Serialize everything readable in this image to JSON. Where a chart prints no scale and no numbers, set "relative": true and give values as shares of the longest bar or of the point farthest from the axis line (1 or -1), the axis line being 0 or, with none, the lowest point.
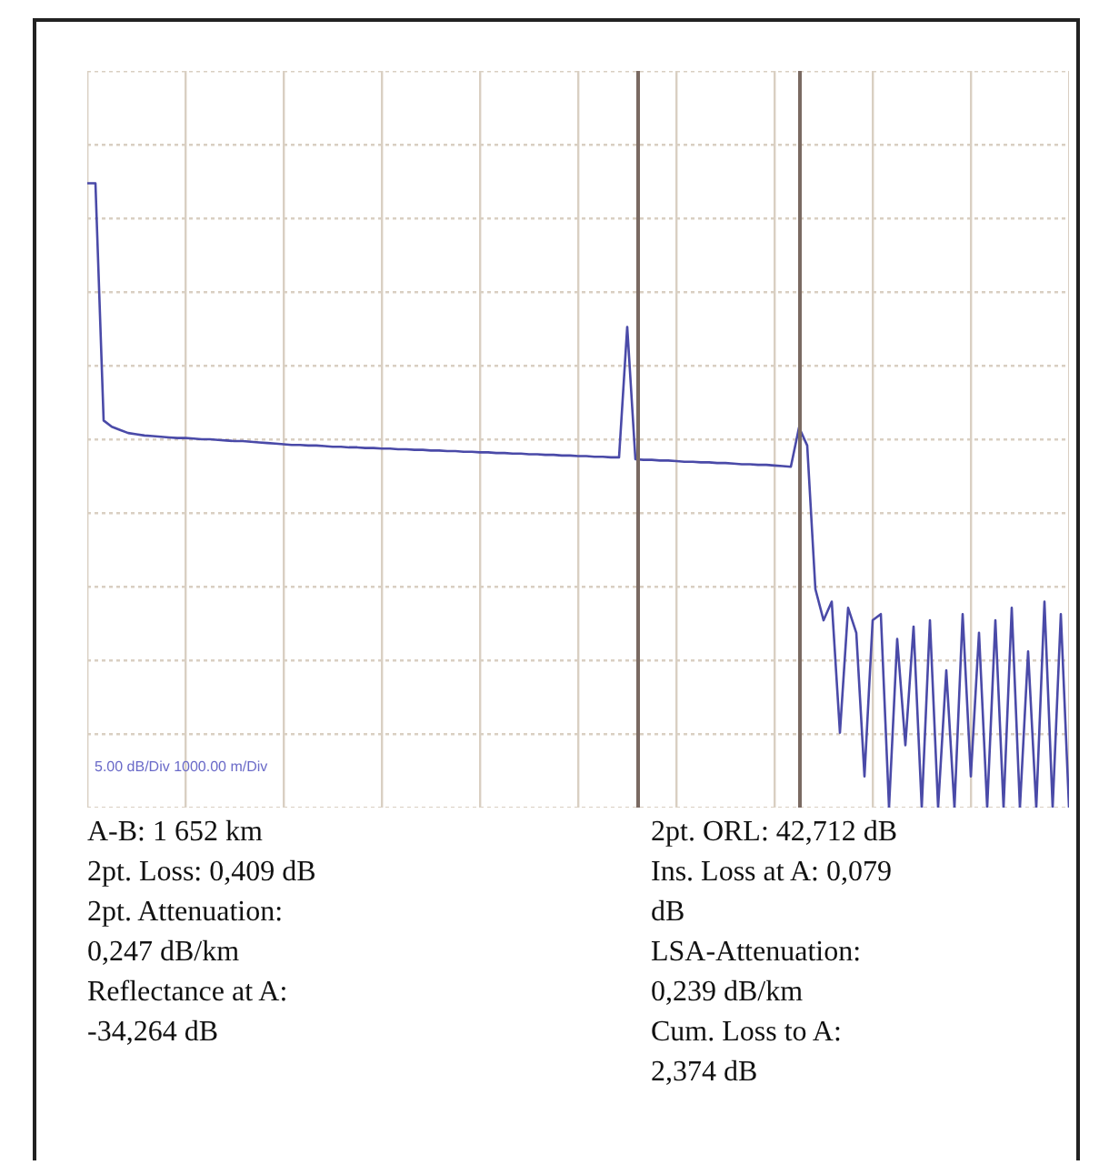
{
  "chart_data": {
    "type": "line",
    "relative": true,
    "grid": true,
    "legend": false,
    "marker": "none",
    "line_style": "solid",
    "categories": [
      null,
      null,
      null,
      null,
      null,
      null,
      null,
      null,
      null,
      null,
      null,
      null,
      null,
      null,
      null,
      null,
      null,
      null,
      null,
      null,
      null,
      null,
      null,
      null,
      null,
      null,
      null,
      null,
      null,
      null,
      null,
      null,
      null,
      null,
      null,
      null,
      null,
      null,
      null,
      null,
      null,
      null,
      null,
      null,
      null,
      null,
      null,
      null,
      null,
      null,
      null,
      null,
      null,
      null,
      null,
      null,
      null,
      null,
      null,
      null,
      null,
      null,
      null,
      null,
      null,
      null,
      null,
      null,
      null,
      null,
      null,
      null,
      null,
      null,
      null,
      null,
      null,
      null,
      null,
      null,
      null,
      null,
      null,
      null,
      null,
      null,
      null,
      null,
      null,
      null,
      null,
      null,
      null,
      null,
      null,
      null,
      null,
      null,
      null,
      null,
      null,
      null,
      null,
      null,
      null,
      null,
      null,
      null,
      null,
      null,
      null,
      null,
      null,
      null,
      null,
      null,
      null,
      null,
      null,
      null,
      null
    ],
    "series": [
      {
        "color": "#4a4aa8",
        "values": [
          1,
          1,
          0.62,
          0.61,
          0.605,
          0.6,
          0.598,
          0.596,
          0.595,
          0.594,
          0.593,
          0.592,
          0.592,
          0.591,
          0.59,
          0.59,
          0.589,
          0.588,
          0.587,
          0.587,
          0.586,
          0.585,
          0.584,
          0.583,
          0.582,
          0.581,
          0.581,
          0.58,
          0.58,
          0.579,
          0.578,
          0.578,
          0.577,
          0.577,
          0.576,
          0.576,
          0.575,
          0.575,
          0.574,
          0.574,
          0.573,
          0.573,
          0.572,
          0.572,
          0.571,
          0.571,
          0.57,
          0.57,
          0.569,
          0.569,
          0.568,
          0.568,
          0.567,
          0.567,
          0.566,
          0.566,
          0.565,
          0.565,
          0.564,
          0.564,
          0.563,
          0.563,
          0.562,
          0.562,
          0.561,
          0.561,
          0.77,
          0.558,
          0.557,
          0.557,
          0.556,
          0.556,
          0.555,
          0.554,
          0.554,
          0.553,
          0.553,
          0.552,
          0.552,
          0.551,
          0.55,
          0.55,
          0.549,
          0.549,
          0.548,
          0.547,
          0.546,
          0.609,
          0.58,
          0.35,
          0.3,
          0.33,
          0.12,
          0.32,
          0.28,
          0.05,
          0.3,
          0.31,
          0,
          0.27,
          0.1,
          0.29,
          0,
          0.3,
          0,
          0.22,
          0,
          0.31,
          0.05,
          0.28,
          0,
          0.3,
          0,
          0.32,
          0,
          0.25,
          0,
          0.33,
          0,
          0.31,
          0
        ]
      }
    ],
    "annotations": [
      "A-B: 1 652 km",
      "2pt. Loss: 0,409 dB",
      "2pt. Attenuation: 0,247 dB/km",
      "Reflectance at A: -34,264 dB",
      "2pt. ORL: 42,712 dB",
      "Ins. Loss at A: 0,079 dB",
      "LSA-Attenuation: 0,239 dB/km",
      "Cum. Loss to A: 2,374 dB",
      "5.00 dB/Div 1000.00 m/Div"
    ]
  }
}
